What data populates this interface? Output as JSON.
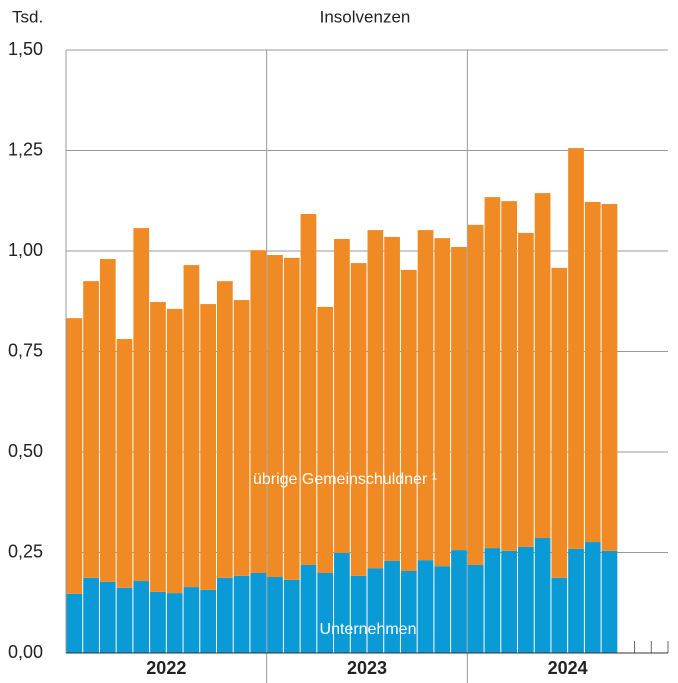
{
  "chart_data": {
    "type": "stacked_bar",
    "title": "Insolvenzen",
    "y_label": "Tsd.",
    "year_labels": [
      "2022",
      "2023",
      "2024"
    ],
    "categories": [
      null,
      null,
      null,
      null,
      null,
      null,
      null,
      null,
      null,
      null,
      null,
      null,
      null,
      null,
      null,
      null,
      null,
      null,
      null,
      null,
      null,
      null,
      null,
      null,
      null,
      null,
      null,
      null,
      null,
      null,
      null,
      null,
      null
    ],
    "series": [
      {
        "name": "Unternehmen",
        "color": "#0a9ad6",
        "values": [
          0.147,
          0.187,
          0.177,
          0.162,
          0.179,
          0.152,
          0.149,
          0.164,
          0.157,
          0.187,
          0.192,
          0.199,
          0.189,
          0.182,
          0.219,
          0.199,
          0.249,
          0.192,
          0.211,
          0.229,
          0.204,
          0.231,
          0.216,
          0.256,
          0.219,
          0.261,
          0.254,
          0.264,
          0.286,
          0.187,
          0.259,
          0.276,
          0.254
        ]
      },
      {
        "name": "übrige Gemeinschuldner ¹",
        "color": "#f08a24",
        "values": [
          0.686,
          0.738,
          0.803,
          0.619,
          0.878,
          0.721,
          0.707,
          0.801,
          0.711,
          0.738,
          0.686,
          0.803,
          0.801,
          0.801,
          0.873,
          0.662,
          0.781,
          0.778,
          0.841,
          0.806,
          0.749,
          0.821,
          0.816,
          0.754,
          0.846,
          0.873,
          0.87,
          0.781,
          0.858,
          0.771,
          0.997,
          0.846,
          0.863
        ]
      }
    ],
    "ylim": [
      0,
      1.5
    ],
    "yticks": [
      {
        "value": 0,
        "label": "0,00"
      },
      {
        "value": 0.25,
        "label": "0,25"
      },
      {
        "value": 0.5,
        "label": "0,50"
      },
      {
        "value": 0.75,
        "label": "0,75"
      },
      {
        "value": 1,
        "label": "1,00"
      },
      {
        "value": 1.25,
        "label": "1,25"
      },
      {
        "value": 1.5,
        "label": "1,50"
      }
    ],
    "grid": true
  }
}
